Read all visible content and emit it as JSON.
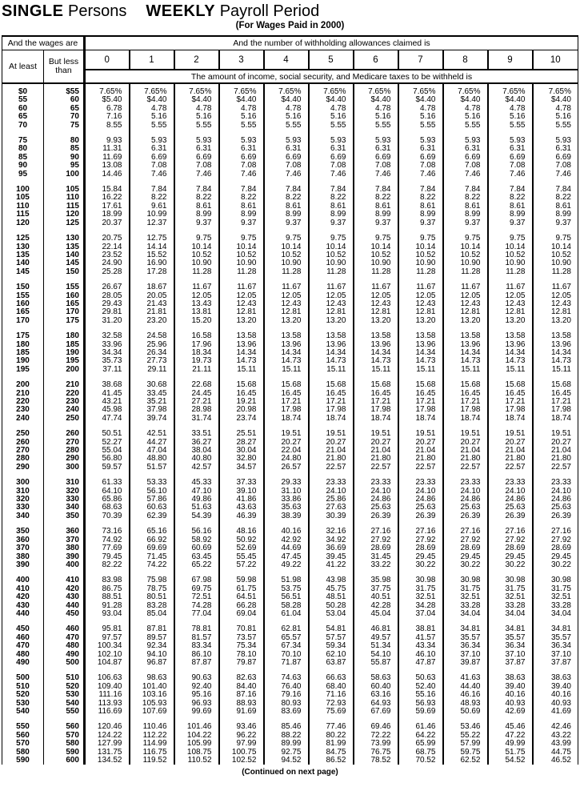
{
  "page": {
    "title_bold1": "SINGLE",
    "title_reg1": "Persons",
    "title_bold2": "WEEKLY",
    "title_reg2": "Payroll Period",
    "subtitle": "(For Wages Paid in 2000)",
    "footer": "(Continued on next page)"
  },
  "header": {
    "wages_are": "And the wages are",
    "allowances": "And the number of withholding allowances claimed is",
    "at_least": "At least",
    "but_less_than": "But less than",
    "allowance_numbers": [
      "0",
      "1",
      "2",
      "3",
      "4",
      "5",
      "6",
      "7",
      "8",
      "9",
      "10"
    ],
    "amount_note": "The amount of income, social security, and Medicare taxes to be withheld is"
  },
  "table": {
    "columns": [
      "At least",
      "But less than",
      "0",
      "1",
      "2",
      "3",
      "4",
      "5",
      "6",
      "7",
      "8",
      "9",
      "10"
    ],
    "groups": [
      [
        [
          "$0",
          "$55",
          "7.65%",
          "7.65%",
          "7.65%",
          "7.65%",
          "7.65%",
          "7.65%",
          "7.65%",
          "7.65%",
          "7.65%",
          "7.65%",
          "7.65%"
        ],
        [
          "55",
          "60",
          "$5.40",
          "$4.40",
          "$4.40",
          "$4.40",
          "$4.40",
          "$4.40",
          "$4.40",
          "$4.40",
          "$4.40",
          "$4.40",
          "$4.40"
        ],
        [
          "60",
          "65",
          "6.78",
          "4.78",
          "4.78",
          "4.78",
          "4.78",
          "4.78",
          "4.78",
          "4.78",
          "4.78",
          "4.78",
          "4.78"
        ],
        [
          "65",
          "70",
          "7.16",
          "5.16",
          "5.16",
          "5.16",
          "5.16",
          "5.16",
          "5.16",
          "5.16",
          "5.16",
          "5.16",
          "5.16"
        ],
        [
          "70",
          "75",
          "8.55",
          "5.55",
          "5.55",
          "5.55",
          "5.55",
          "5.55",
          "5.55",
          "5.55",
          "5.55",
          "5.55",
          "5.55"
        ]
      ],
      [
        [
          "75",
          "80",
          "9.93",
          "5.93",
          "5.93",
          "5.93",
          "5.93",
          "5.93",
          "5.93",
          "5.93",
          "5.93",
          "5.93",
          "5.93"
        ],
        [
          "80",
          "85",
          "11.31",
          "6.31",
          "6.31",
          "6.31",
          "6.31",
          "6.31",
          "6.31",
          "6.31",
          "6.31",
          "6.31",
          "6.31"
        ],
        [
          "85",
          "90",
          "11.69",
          "6.69",
          "6.69",
          "6.69",
          "6.69",
          "6.69",
          "6.69",
          "6.69",
          "6.69",
          "6.69",
          "6.69"
        ],
        [
          "90",
          "95",
          "13.08",
          "7.08",
          "7.08",
          "7.08",
          "7.08",
          "7.08",
          "7.08",
          "7.08",
          "7.08",
          "7.08",
          "7.08"
        ],
        [
          "95",
          "100",
          "14.46",
          "7.46",
          "7.46",
          "7.46",
          "7.46",
          "7.46",
          "7.46",
          "7.46",
          "7.46",
          "7.46",
          "7.46"
        ]
      ],
      [
        [
          "100",
          "105",
          "15.84",
          "7.84",
          "7.84",
          "7.84",
          "7.84",
          "7.84",
          "7.84",
          "7.84",
          "7.84",
          "7.84",
          "7.84"
        ],
        [
          "105",
          "110",
          "16.22",
          "8.22",
          "8.22",
          "8.22",
          "8.22",
          "8.22",
          "8.22",
          "8.22",
          "8.22",
          "8.22",
          "8.22"
        ],
        [
          "110",
          "115",
          "17.61",
          "9.61",
          "8.61",
          "8.61",
          "8.61",
          "8.61",
          "8.61",
          "8.61",
          "8.61",
          "8.61",
          "8.61"
        ],
        [
          "115",
          "120",
          "18.99",
          "10.99",
          "8.99",
          "8.99",
          "8.99",
          "8.99",
          "8.99",
          "8.99",
          "8.99",
          "8.99",
          "8.99"
        ],
        [
          "120",
          "125",
          "20.37",
          "12.37",
          "9.37",
          "9.37",
          "9.37",
          "9.37",
          "9.37",
          "9.37",
          "9.37",
          "9.37",
          "9.37"
        ]
      ],
      [
        [
          "125",
          "130",
          "20.75",
          "12.75",
          "9.75",
          "9.75",
          "9.75",
          "9.75",
          "9.75",
          "9.75",
          "9.75",
          "9.75",
          "9.75"
        ],
        [
          "130",
          "135",
          "22.14",
          "14.14",
          "10.14",
          "10.14",
          "10.14",
          "10.14",
          "10.14",
          "10.14",
          "10.14",
          "10.14",
          "10.14"
        ],
        [
          "135",
          "140",
          "23.52",
          "15.52",
          "10.52",
          "10.52",
          "10.52",
          "10.52",
          "10.52",
          "10.52",
          "10.52",
          "10.52",
          "10.52"
        ],
        [
          "140",
          "145",
          "24.90",
          "16.90",
          "10.90",
          "10.90",
          "10.90",
          "10.90",
          "10.90",
          "10.90",
          "10.90",
          "10.90",
          "10.90"
        ],
        [
          "145",
          "150",
          "25.28",
          "17.28",
          "11.28",
          "11.28",
          "11.28",
          "11.28",
          "11.28",
          "11.28",
          "11.28",
          "11.28",
          "11.28"
        ]
      ],
      [
        [
          "150",
          "155",
          "26.67",
          "18.67",
          "11.67",
          "11.67",
          "11.67",
          "11.67",
          "11.67",
          "11.67",
          "11.67",
          "11.67",
          "11.67"
        ],
        [
          "155",
          "160",
          "28.05",
          "20.05",
          "12.05",
          "12.05",
          "12.05",
          "12.05",
          "12.05",
          "12.05",
          "12.05",
          "12.05",
          "12.05"
        ],
        [
          "160",
          "165",
          "29.43",
          "21.43",
          "13.43",
          "12.43",
          "12.43",
          "12.43",
          "12.43",
          "12.43",
          "12.43",
          "12.43",
          "12.43"
        ],
        [
          "165",
          "170",
          "29.81",
          "21.81",
          "13.81",
          "12.81",
          "12.81",
          "12.81",
          "12.81",
          "12.81",
          "12.81",
          "12.81",
          "12.81"
        ],
        [
          "170",
          "175",
          "31.20",
          "23.20",
          "15.20",
          "13.20",
          "13.20",
          "13.20",
          "13.20",
          "13.20",
          "13.20",
          "13.20",
          "13.20"
        ]
      ],
      [
        [
          "175",
          "180",
          "32.58",
          "24.58",
          "16.58",
          "13.58",
          "13.58",
          "13.58",
          "13.58",
          "13.58",
          "13.58",
          "13.58",
          "13.58"
        ],
        [
          "180",
          "185",
          "33.96",
          "25.96",
          "17.96",
          "13.96",
          "13.96",
          "13.96",
          "13.96",
          "13.96",
          "13.96",
          "13.96",
          "13.96"
        ],
        [
          "185",
          "190",
          "34.34",
          "26.34",
          "18.34",
          "14.34",
          "14.34",
          "14.34",
          "14.34",
          "14.34",
          "14.34",
          "14.34",
          "14.34"
        ],
        [
          "190",
          "195",
          "35.73",
          "27.73",
          "19.73",
          "14.73",
          "14.73",
          "14.73",
          "14.73",
          "14.73",
          "14.73",
          "14.73",
          "14.73"
        ],
        [
          "195",
          "200",
          "37.11",
          "29.11",
          "21.11",
          "15.11",
          "15.11",
          "15.11",
          "15.11",
          "15.11",
          "15.11",
          "15.11",
          "15.11"
        ]
      ],
      [
        [
          "200",
          "210",
          "38.68",
          "30.68",
          "22.68",
          "15.68",
          "15.68",
          "15.68",
          "15.68",
          "15.68",
          "15.68",
          "15.68",
          "15.68"
        ],
        [
          "210",
          "220",
          "41.45",
          "33.45",
          "24.45",
          "16.45",
          "16.45",
          "16.45",
          "16.45",
          "16.45",
          "16.45",
          "16.45",
          "16.45"
        ],
        [
          "220",
          "230",
          "43.21",
          "35.21",
          "27.21",
          "19.21",
          "17.21",
          "17.21",
          "17.21",
          "17.21",
          "17.21",
          "17.21",
          "17.21"
        ],
        [
          "230",
          "240",
          "45.98",
          "37.98",
          "28.98",
          "20.98",
          "17.98",
          "17.98",
          "17.98",
          "17.98",
          "17.98",
          "17.98",
          "17.98"
        ],
        [
          "240",
          "250",
          "47.74",
          "39.74",
          "31.74",
          "23.74",
          "18.74",
          "18.74",
          "18.74",
          "18.74",
          "18.74",
          "18.74",
          "18.74"
        ]
      ],
      [
        [
          "250",
          "260",
          "50.51",
          "42.51",
          "33.51",
          "25.51",
          "19.51",
          "19.51",
          "19.51",
          "19.51",
          "19.51",
          "19.51",
          "19.51"
        ],
        [
          "260",
          "270",
          "52.27",
          "44.27",
          "36.27",
          "28.27",
          "20.27",
          "20.27",
          "20.27",
          "20.27",
          "20.27",
          "20.27",
          "20.27"
        ],
        [
          "270",
          "280",
          "55.04",
          "47.04",
          "38.04",
          "30.04",
          "22.04",
          "21.04",
          "21.04",
          "21.04",
          "21.04",
          "21.04",
          "21.04"
        ],
        [
          "280",
          "290",
          "56.80",
          "48.80",
          "40.80",
          "32.80",
          "24.80",
          "21.80",
          "21.80",
          "21.80",
          "21.80",
          "21.80",
          "21.80"
        ],
        [
          "290",
          "300",
          "59.57",
          "51.57",
          "42.57",
          "34.57",
          "26.57",
          "22.57",
          "22.57",
          "22.57",
          "22.57",
          "22.57",
          "22.57"
        ]
      ],
      [
        [
          "300",
          "310",
          "61.33",
          "53.33",
          "45.33",
          "37.33",
          "29.33",
          "23.33",
          "23.33",
          "23.33",
          "23.33",
          "23.33",
          "23.33"
        ],
        [
          "310",
          "320",
          "64.10",
          "56.10",
          "47.10",
          "39.10",
          "31.10",
          "24.10",
          "24.10",
          "24.10",
          "24.10",
          "24.10",
          "24.10"
        ],
        [
          "320",
          "330",
          "65.86",
          "57.86",
          "49.86",
          "41.86",
          "33.86",
          "25.86",
          "24.86",
          "24.86",
          "24.86",
          "24.86",
          "24.86"
        ],
        [
          "330",
          "340",
          "68.63",
          "60.63",
          "51.63",
          "43.63",
          "35.63",
          "27.63",
          "25.63",
          "25.63",
          "25.63",
          "25.63",
          "25.63"
        ],
        [
          "340",
          "350",
          "70.39",
          "62.39",
          "54.39",
          "46.39",
          "38.39",
          "30.39",
          "26.39",
          "26.39",
          "26.39",
          "26.39",
          "26.39"
        ]
      ],
      [
        [
          "350",
          "360",
          "73.16",
          "65.16",
          "56.16",
          "48.16",
          "40.16",
          "32.16",
          "27.16",
          "27.16",
          "27.16",
          "27.16",
          "27.16"
        ],
        [
          "360",
          "370",
          "74.92",
          "66.92",
          "58.92",
          "50.92",
          "42.92",
          "34.92",
          "27.92",
          "27.92",
          "27.92",
          "27.92",
          "27.92"
        ],
        [
          "370",
          "380",
          "77.69",
          "69.69",
          "60.69",
          "52.69",
          "44.69",
          "36.69",
          "28.69",
          "28.69",
          "28.69",
          "28.69",
          "28.69"
        ],
        [
          "380",
          "390",
          "79.45",
          "71.45",
          "63.45",
          "55.45",
          "47.45",
          "39.45",
          "31.45",
          "29.45",
          "29.45",
          "29.45",
          "29.45"
        ],
        [
          "390",
          "400",
          "82.22",
          "74.22",
          "65.22",
          "57.22",
          "49.22",
          "41.22",
          "33.22",
          "30.22",
          "30.22",
          "30.22",
          "30.22"
        ]
      ],
      [
        [
          "400",
          "410",
          "83.98",
          "75.98",
          "67.98",
          "59.98",
          "51.98",
          "43.98",
          "35.98",
          "30.98",
          "30.98",
          "30.98",
          "30.98"
        ],
        [
          "410",
          "420",
          "86.75",
          "78.75",
          "69.75",
          "61.75",
          "53.75",
          "45.75",
          "37.75",
          "31.75",
          "31.75",
          "31.75",
          "31.75"
        ],
        [
          "420",
          "430",
          "88.51",
          "80.51",
          "72.51",
          "64.51",
          "56.51",
          "48.51",
          "40.51",
          "32.51",
          "32.51",
          "32.51",
          "32.51"
        ],
        [
          "430",
          "440",
          "91.28",
          "83.28",
          "74.28",
          "66.28",
          "58.28",
          "50.28",
          "42.28",
          "34.28",
          "33.28",
          "33.28",
          "33.28"
        ],
        [
          "440",
          "450",
          "93.04",
          "85.04",
          "77.04",
          "69.04",
          "61.04",
          "53.04",
          "45.04",
          "37.04",
          "34.04",
          "34.04",
          "34.04"
        ]
      ],
      [
        [
          "450",
          "460",
          "95.81",
          "87.81",
          "78.81",
          "70.81",
          "62.81",
          "54.81",
          "46.81",
          "38.81",
          "34.81",
          "34.81",
          "34.81"
        ],
        [
          "460",
          "470",
          "97.57",
          "89.57",
          "81.57",
          "73.57",
          "65.57",
          "57.57",
          "49.57",
          "41.57",
          "35.57",
          "35.57",
          "35.57"
        ],
        [
          "470",
          "480",
          "100.34",
          "92.34",
          "83.34",
          "75.34",
          "67.34",
          "59.34",
          "51.34",
          "43.34",
          "36.34",
          "36.34",
          "36.34"
        ],
        [
          "480",
          "490",
          "102.10",
          "94.10",
          "86.10",
          "78.10",
          "70.10",
          "62.10",
          "54.10",
          "46.10",
          "37.10",
          "37.10",
          "37.10"
        ],
        [
          "490",
          "500",
          "104.87",
          "96.87",
          "87.87",
          "79.87",
          "71.87",
          "63.87",
          "55.87",
          "47.87",
          "39.87",
          "37.87",
          "37.87"
        ]
      ],
      [
        [
          "500",
          "510",
          "106.63",
          "98.63",
          "90.63",
          "82.63",
          "74.63",
          "66.63",
          "58.63",
          "50.63",
          "41.63",
          "38.63",
          "38.63"
        ],
        [
          "510",
          "520",
          "109.40",
          "101.40",
          "92.40",
          "84.40",
          "76.40",
          "68.40",
          "60.40",
          "52.40",
          "44.40",
          "39.40",
          "39.40"
        ],
        [
          "520",
          "530",
          "111.16",
          "103.16",
          "95.16",
          "87.16",
          "79.16",
          "71.16",
          "63.16",
          "55.16",
          "46.16",
          "40.16",
          "40.16"
        ],
        [
          "530",
          "540",
          "113.93",
          "105.93",
          "96.93",
          "88.93",
          "80.93",
          "72.93",
          "64.93",
          "56.93",
          "48.93",
          "40.93",
          "40.93"
        ],
        [
          "540",
          "550",
          "116.69",
          "107.69",
          "99.69",
          "91.69",
          "83.69",
          "75.69",
          "67.69",
          "59.69",
          "50.69",
          "42.69",
          "41.69"
        ]
      ],
      [
        [
          "550",
          "560",
          "120.46",
          "110.46",
          "101.46",
          "93.46",
          "85.46",
          "77.46",
          "69.46",
          "61.46",
          "53.46",
          "45.46",
          "42.46"
        ],
        [
          "560",
          "570",
          "124.22",
          "112.22",
          "104.22",
          "96.22",
          "88.22",
          "80.22",
          "72.22",
          "64.22",
          "55.22",
          "47.22",
          "43.22"
        ],
        [
          "570",
          "580",
          "127.99",
          "114.99",
          "105.99",
          "97.99",
          "89.99",
          "81.99",
          "73.99",
          "65.99",
          "57.99",
          "49.99",
          "43.99"
        ],
        [
          "580",
          "590",
          "131.75",
          "116.75",
          "108.75",
          "100.75",
          "92.75",
          "84.75",
          "76.75",
          "68.75",
          "59.75",
          "51.75",
          "44.75"
        ],
        [
          "590",
          "600",
          "134.52",
          "119.52",
          "110.52",
          "102.52",
          "94.52",
          "86.52",
          "78.52",
          "70.52",
          "62.52",
          "54.52",
          "46.52"
        ]
      ]
    ]
  }
}
